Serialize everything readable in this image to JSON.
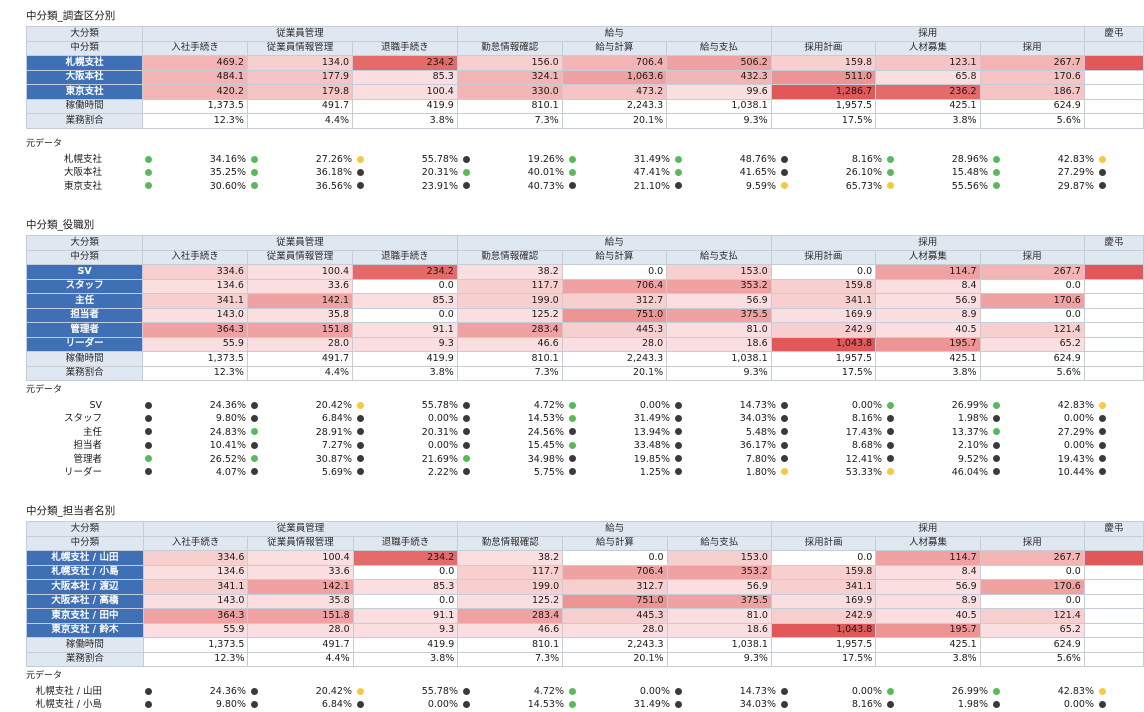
{
  "columns": {
    "groups": [
      {
        "label": "従業員管理",
        "span": 3
      },
      {
        "label": "給与",
        "span": 3
      },
      {
        "label": "採用",
        "span": 3
      },
      {
        "label": "慶弔",
        "span": 1
      }
    ],
    "major_label": "大分類",
    "minor_label": "中分類",
    "minors": [
      "入社手続き",
      "従業員情報管理",
      "退職手続き",
      "勤怠情報確認",
      "給与計算",
      "給与支払",
      "採用計画",
      "人材募集",
      "採用",
      ""
    ]
  },
  "footer_rows": {
    "hours_label": "稼働時間",
    "hours": [
      "1,373.5",
      "491.7",
      "419.9",
      "810.1",
      "2,243.3",
      "1,038.1",
      "1,957.5",
      "425.1",
      "624.9",
      ""
    ],
    "ratio_label": "業務割合",
    "ratio": [
      "12.3%",
      "4.4%",
      "3.8%",
      "7.3%",
      "20.1%",
      "9.3%",
      "17.5%",
      "3.8%",
      "5.6%",
      ""
    ]
  },
  "dot_colors": {
    "g": "#5cb85c",
    "k": "#3a3a3a",
    "y": "#f7c844"
  },
  "heat_palette": [
    "#ffffff",
    "#fbdfe0",
    "#f8cfcf",
    "#f6c4c4",
    "#f3b4b4",
    "#f0a2a2",
    "#ed9494",
    "#ea8585",
    "#e87878",
    "#e56a6a",
    "#e25757"
  ],
  "sections": [
    {
      "title": "中分類_調査区分別",
      "source_label": "元データ",
      "rows": [
        {
          "label": "札幌支社",
          "values": [
            "469.2",
            "134.0",
            "234.2",
            "156.0",
            "706.4",
            "506.2",
            "159.8",
            "123.1",
            "267.7",
            ""
          ],
          "heat": [
            4,
            2,
            9,
            2,
            4,
            5,
            2,
            3,
            4,
            10
          ]
        },
        {
          "label": "大阪本社",
          "values": [
            "484.1",
            "177.9",
            "85.3",
            "324.1",
            "1,063.6",
            "432.3",
            "511.0",
            "65.8",
            "170.6",
            ""
          ],
          "heat": [
            4,
            3,
            1,
            4,
            5,
            4,
            6,
            1,
            3,
            0
          ]
        },
        {
          "label": "東京支社",
          "values": [
            "420.2",
            "179.8",
            "100.4",
            "330.0",
            "473.2",
            "99.6",
            "1,286.7",
            "236.2",
            "186.7",
            ""
          ],
          "heat": [
            4,
            3,
            1,
            4,
            3,
            1,
            10,
            9,
            3,
            0
          ]
        }
      ],
      "source_rows": [
        {
          "label": "札幌支社",
          "cells": [
            {
              "p": "34.16%",
              "d": "g"
            },
            {
              "p": "27.26%",
              "d": "g"
            },
            {
              "p": "55.78%",
              "d": "y"
            },
            {
              "p": "19.26%",
              "d": "k"
            },
            {
              "p": "31.49%",
              "d": "g"
            },
            {
              "p": "48.76%",
              "d": "g"
            },
            {
              "p": "8.16%",
              "d": "k"
            },
            {
              "p": "28.96%",
              "d": "g"
            },
            {
              "p": "42.83%",
              "d": "g"
            },
            {
              "p": "",
              "d": "y"
            }
          ]
        },
        {
          "label": "大阪本社",
          "cells": [
            {
              "p": "35.25%",
              "d": "g"
            },
            {
              "p": "36.18%",
              "d": "g"
            },
            {
              "p": "20.31%",
              "d": "k"
            },
            {
              "p": "40.01%",
              "d": "g"
            },
            {
              "p": "47.41%",
              "d": "g"
            },
            {
              "p": "41.65%",
              "d": "g"
            },
            {
              "p": "26.10%",
              "d": "k"
            },
            {
              "p": "15.48%",
              "d": "g"
            },
            {
              "p": "27.29%",
              "d": "g"
            },
            {
              "p": "",
              "d": "k"
            }
          ]
        },
        {
          "label": "東京支社",
          "cells": [
            {
              "p": "30.60%",
              "d": "g"
            },
            {
              "p": "36.56%",
              "d": "g"
            },
            {
              "p": "23.91%",
              "d": "k"
            },
            {
              "p": "40.73%",
              "d": "k"
            },
            {
              "p": "21.10%",
              "d": "k"
            },
            {
              "p": "9.59%",
              "d": "k"
            },
            {
              "p": "65.73%",
              "d": "y"
            },
            {
              "p": "55.56%",
              "d": "y"
            },
            {
              "p": "29.87%",
              "d": "g"
            },
            {
              "p": "",
              "d": "k"
            }
          ]
        }
      ]
    },
    {
      "title": "中分類_役職別",
      "source_label": "元データ",
      "rows": [
        {
          "label": "SV",
          "values": [
            "334.6",
            "100.4",
            "234.2",
            "38.2",
            "0.0",
            "153.0",
            "0.0",
            "114.7",
            "267.7",
            ""
          ],
          "heat": [
            2,
            1,
            9,
            1,
            0,
            2,
            0,
            5,
            4,
            10
          ]
        },
        {
          "label": "スタッフ",
          "values": [
            "134.6",
            "33.6",
            "0.0",
            "117.7",
            "706.4",
            "353.2",
            "159.8",
            "8.4",
            "0.0",
            ""
          ],
          "heat": [
            1,
            1,
            0,
            2,
            5,
            5,
            2,
            1,
            0,
            0
          ]
        },
        {
          "label": "主任",
          "values": [
            "341.1",
            "142.1",
            "85.3",
            "199.0",
            "312.7",
            "56.9",
            "341.1",
            "56.9",
            "170.6",
            ""
          ],
          "heat": [
            2,
            5,
            1,
            2,
            2,
            1,
            2,
            1,
            5,
            0
          ]
        },
        {
          "label": "担当者",
          "values": [
            "143.0",
            "35.8",
            "0.0",
            "125.2",
            "751.0",
            "375.5",
            "169.9",
            "8.9",
            "0.0",
            ""
          ],
          "heat": [
            1,
            1,
            0,
            1,
            6,
            5,
            1,
            1,
            0,
            0
          ]
        },
        {
          "label": "管理者",
          "values": [
            "364.3",
            "151.8",
            "91.1",
            "283.4",
            "445.3",
            "81.0",
            "242.9",
            "40.5",
            "121.4",
            ""
          ],
          "heat": [
            5,
            5,
            1,
            5,
            2,
            1,
            2,
            1,
            2,
            0
          ]
        },
        {
          "label": "リーダー",
          "values": [
            "55.9",
            "28.0",
            "9.3",
            "46.6",
            "28.0",
            "18.6",
            "1,043.8",
            "195.7",
            "65.2",
            ""
          ],
          "heat": [
            1,
            1,
            1,
            1,
            1,
            1,
            10,
            6,
            1,
            0
          ]
        }
      ],
      "source_rows": [
        {
          "label": "SV",
          "cells": [
            {
              "p": "24.36%",
              "d": "k"
            },
            {
              "p": "20.42%",
              "d": "k"
            },
            {
              "p": "55.78%",
              "d": "y"
            },
            {
              "p": "4.72%",
              "d": "k"
            },
            {
              "p": "0.00%",
              "d": "g"
            },
            {
              "p": "14.73%",
              "d": "k"
            },
            {
              "p": "0.00%",
              "d": "k"
            },
            {
              "p": "26.99%",
              "d": "g"
            },
            {
              "p": "42.83%",
              "d": "g"
            },
            {
              "p": "",
              "d": "y"
            }
          ]
        },
        {
          "label": "スタッフ",
          "cells": [
            {
              "p": "9.80%",
              "d": "k"
            },
            {
              "p": "6.84%",
              "d": "k"
            },
            {
              "p": "0.00%",
              "d": "k"
            },
            {
              "p": "14.53%",
              "d": "k"
            },
            {
              "p": "31.49%",
              "d": "g"
            },
            {
              "p": "34.03%",
              "d": "k"
            },
            {
              "p": "8.16%",
              "d": "k"
            },
            {
              "p": "1.98%",
              "d": "k"
            },
            {
              "p": "0.00%",
              "d": "k"
            },
            {
              "p": "",
              "d": "k"
            }
          ]
        },
        {
          "label": "主任",
          "cells": [
            {
              "p": "24.83%",
              "d": "k"
            },
            {
              "p": "28.91%",
              "d": "g"
            },
            {
              "p": "20.31%",
              "d": "k"
            },
            {
              "p": "24.56%",
              "d": "k"
            },
            {
              "p": "13.94%",
              "d": "k"
            },
            {
              "p": "5.48%",
              "d": "k"
            },
            {
              "p": "17.43%",
              "d": "k"
            },
            {
              "p": "13.37%",
              "d": "k"
            },
            {
              "p": "27.29%",
              "d": "g"
            },
            {
              "p": "",
              "d": "k"
            }
          ]
        },
        {
          "label": "担当者",
          "cells": [
            {
              "p": "10.41%",
              "d": "k"
            },
            {
              "p": "7.27%",
              "d": "k"
            },
            {
              "p": "0.00%",
              "d": "k"
            },
            {
              "p": "15.45%",
              "d": "k"
            },
            {
              "p": "33.48%",
              "d": "g"
            },
            {
              "p": "36.17%",
              "d": "k"
            },
            {
              "p": "8.68%",
              "d": "k"
            },
            {
              "p": "2.10%",
              "d": "k"
            },
            {
              "p": "0.00%",
              "d": "k"
            },
            {
              "p": "",
              "d": "k"
            }
          ]
        },
        {
          "label": "管理者",
          "cells": [
            {
              "p": "26.52%",
              "d": "g"
            },
            {
              "p": "30.87%",
              "d": "g"
            },
            {
              "p": "21.69%",
              "d": "k"
            },
            {
              "p": "34.98%",
              "d": "g"
            },
            {
              "p": "19.85%",
              "d": "k"
            },
            {
              "p": "7.80%",
              "d": "k"
            },
            {
              "p": "12.41%",
              "d": "k"
            },
            {
              "p": "9.52%",
              "d": "k"
            },
            {
              "p": "19.43%",
              "d": "k"
            },
            {
              "p": "",
              "d": "k"
            }
          ]
        },
        {
          "label": "リーダー",
          "cells": [
            {
              "p": "4.07%",
              "d": "k"
            },
            {
              "p": "5.69%",
              "d": "k"
            },
            {
              "p": "2.22%",
              "d": "k"
            },
            {
              "p": "5.75%",
              "d": "k"
            },
            {
              "p": "1.25%",
              "d": "k"
            },
            {
              "p": "1.80%",
              "d": "k"
            },
            {
              "p": "53.33%",
              "d": "y"
            },
            {
              "p": "46.04%",
              "d": "y"
            },
            {
              "p": "10.44%",
              "d": "k"
            },
            {
              "p": "",
              "d": "k"
            }
          ]
        }
      ]
    },
    {
      "title": "中分類_担当者名別",
      "source_label": "元データ",
      "rows": [
        {
          "label": "札幌支社 / 山田",
          "values": [
            "334.6",
            "100.4",
            "234.2",
            "38.2",
            "0.0",
            "153.0",
            "0.0",
            "114.7",
            "267.7",
            ""
          ],
          "heat": [
            2,
            1,
            9,
            1,
            0,
            2,
            0,
            5,
            4,
            10
          ]
        },
        {
          "label": "札幌支社 / 小島",
          "values": [
            "134.6",
            "33.6",
            "0.0",
            "117.7",
            "706.4",
            "353.2",
            "159.8",
            "8.4",
            "0.0",
            ""
          ],
          "heat": [
            1,
            1,
            0,
            2,
            5,
            5,
            2,
            1,
            0,
            0
          ]
        },
        {
          "label": "大阪本社 / 渡辺",
          "values": [
            "341.1",
            "142.1",
            "85.3",
            "199.0",
            "312.7",
            "56.9",
            "341.1",
            "56.9",
            "170.6",
            ""
          ],
          "heat": [
            2,
            5,
            1,
            2,
            2,
            1,
            2,
            1,
            5,
            0
          ]
        },
        {
          "label": "大阪本社 / 高橋",
          "values": [
            "143.0",
            "35.8",
            "0.0",
            "125.2",
            "751.0",
            "375.5",
            "169.9",
            "8.9",
            "0.0",
            ""
          ],
          "heat": [
            1,
            1,
            0,
            1,
            6,
            5,
            1,
            1,
            0,
            0
          ]
        },
        {
          "label": "東京支社 / 田中",
          "values": [
            "364.3",
            "151.8",
            "91.1",
            "283.4",
            "445.3",
            "81.0",
            "242.9",
            "40.5",
            "121.4",
            ""
          ],
          "heat": [
            5,
            5,
            1,
            5,
            2,
            1,
            2,
            1,
            2,
            0
          ]
        },
        {
          "label": "東京支社 / 鈴木",
          "values": [
            "55.9",
            "28.0",
            "9.3",
            "46.6",
            "28.0",
            "18.6",
            "1,043.8",
            "195.7",
            "65.2",
            ""
          ],
          "heat": [
            1,
            1,
            1,
            1,
            1,
            1,
            10,
            6,
            1,
            0
          ]
        }
      ],
      "source_rows": [
        {
          "label": "札幌支社 / 山田",
          "cells": [
            {
              "p": "24.36%",
              "d": "k"
            },
            {
              "p": "20.42%",
              "d": "k"
            },
            {
              "p": "55.78%",
              "d": "y"
            },
            {
              "p": "4.72%",
              "d": "k"
            },
            {
              "p": "0.00%",
              "d": "g"
            },
            {
              "p": "14.73%",
              "d": "k"
            },
            {
              "p": "0.00%",
              "d": "k"
            },
            {
              "p": "26.99%",
              "d": "g"
            },
            {
              "p": "42.83%",
              "d": "g"
            },
            {
              "p": "",
              "d": "y"
            }
          ]
        },
        {
          "label": "札幌支社 / 小島",
          "cells": [
            {
              "p": "9.80%",
              "d": "k"
            },
            {
              "p": "6.84%",
              "d": "k"
            },
            {
              "p": "0.00%",
              "d": "k"
            },
            {
              "p": "14.53%",
              "d": "k"
            },
            {
              "p": "31.49%",
              "d": "g"
            },
            {
              "p": "34.03%",
              "d": "k"
            },
            {
              "p": "8.16%",
              "d": "k"
            },
            {
              "p": "1.98%",
              "d": "k"
            },
            {
              "p": "0.00%",
              "d": "k"
            },
            {
              "p": "",
              "d": "k"
            }
          ]
        }
      ]
    }
  ]
}
